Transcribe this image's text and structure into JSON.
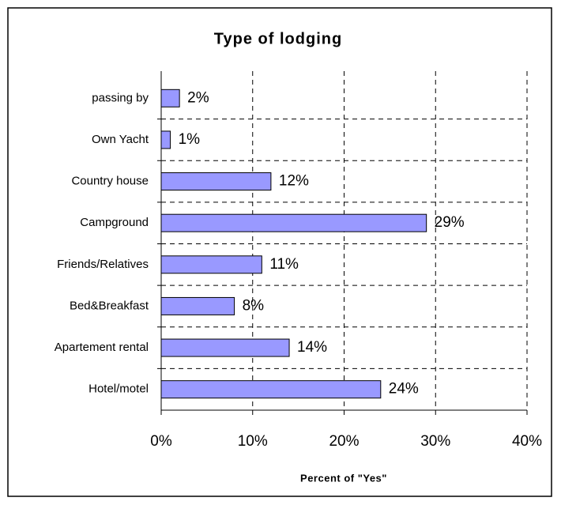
{
  "chart_data": {
    "type": "hbar",
    "title": "Type of lodging",
    "xlabel": "Percent of \"Yes\"",
    "categories": [
      "passing by",
      "Own Yacht",
      "Country house",
      "Campground",
      "Friends/Relatives",
      "Bed&Breakfast",
      "Apartement rental",
      "Hotel/motel"
    ],
    "values": [
      2,
      1,
      12,
      29,
      11,
      8,
      14,
      24
    ],
    "value_labels": [
      "2%",
      "1%",
      "12%",
      "29%",
      "11%",
      "8%",
      "14%",
      "24%"
    ],
    "color": "#9999ff",
    "xlim": [
      0,
      40
    ],
    "xticks": [
      {
        "value": 0,
        "label": "0%"
      },
      {
        "value": 10,
        "label": "10%"
      },
      {
        "value": 20,
        "label": "20%"
      },
      {
        "value": 30,
        "label": "30%"
      },
      {
        "value": 40,
        "label": "40%"
      }
    ],
    "grid": true
  }
}
